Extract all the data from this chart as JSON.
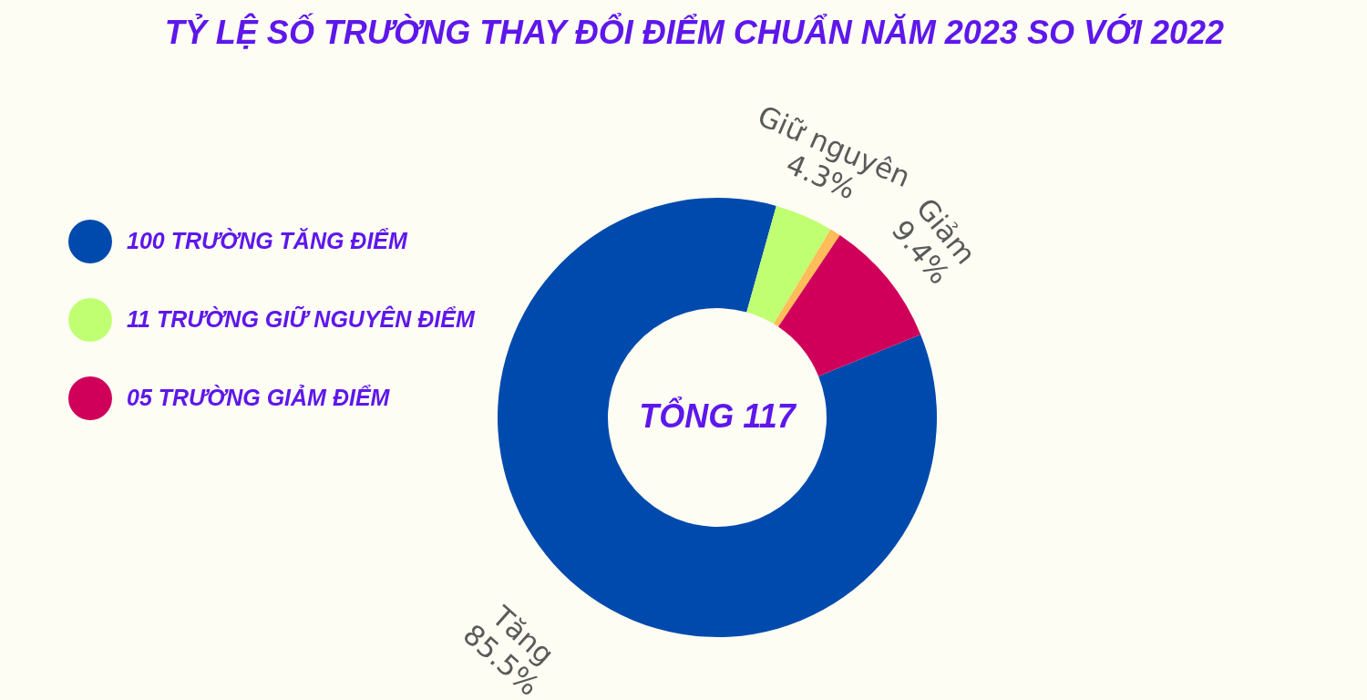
{
  "chart_data": {
    "type": "donut",
    "title": "TỶ LỆ SỐ TRƯỜNG THAY ĐỔI ĐIỂM CHUẨN NĂM 2023 SO VỚI 2022",
    "categories": [
      "100 TRƯỜNG TĂNG ĐIỂM",
      "11 TRƯỜNG GIỮ NGUYÊN  ĐIỂM",
      null,
      "05 TRƯỜNG GIẢM ĐIỂM"
    ],
    "values": [
      85.5,
      4.3,
      0.8,
      9.4
    ],
    "colors": [
      "#004aad",
      "#c1ff72",
      "#ffbd59",
      "#d0005a"
    ],
    "value_labels": [
      "Tăng 85.5%",
      "Giữ nguyên 4.3%",
      null,
      "Giảm 9.4%"
    ],
    "legend": "left",
    "annotations": [
      "TỔNG 117"
    ]
  }
}
